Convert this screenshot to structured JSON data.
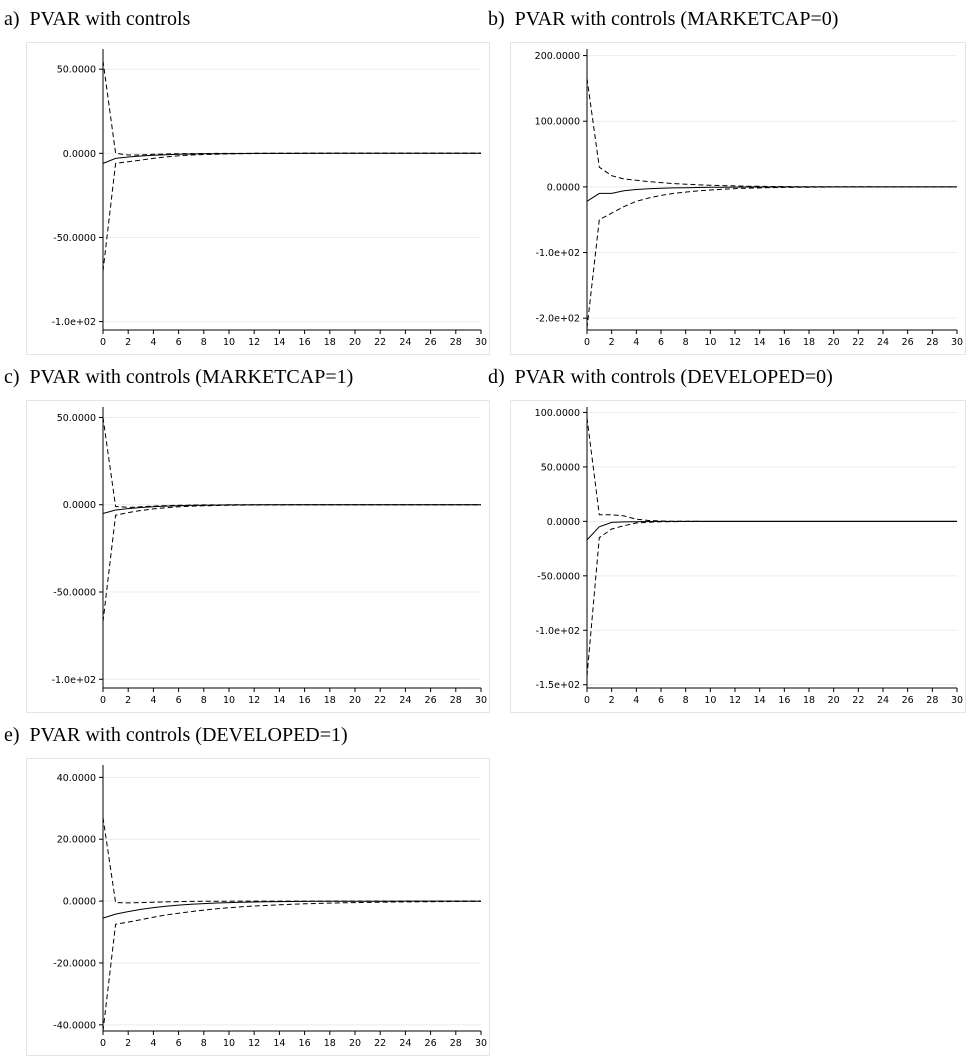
{
  "chart_data": [
    {
      "id": "a",
      "type": "line",
      "letter": "a)",
      "title": "PVAR with controls",
      "x": [
        0,
        1,
        2,
        3,
        4,
        5,
        6,
        7,
        8,
        9,
        10,
        11,
        12,
        13,
        14,
        15,
        16,
        17,
        18,
        19,
        20,
        21,
        22,
        23,
        24,
        25,
        26,
        27,
        28,
        29,
        30
      ],
      "xticks": [
        "0",
        "2",
        "4",
        "6",
        "8",
        "10",
        "12",
        "14",
        "16",
        "18",
        "20",
        "22",
        "24",
        "26",
        "28",
        "30"
      ],
      "ylim": [
        -105,
        62
      ],
      "yticks": [
        {
          "value": 50,
          "label": "50.0000"
        },
        {
          "value": 0,
          "label": "0.0000"
        },
        {
          "value": -50,
          "label": "-50.0000"
        },
        {
          "value": -100,
          "label": "-1.0e+02"
        }
      ],
      "grid": true,
      "series": [
        {
          "style": "dashed",
          "values": [
            55,
            0,
            -1,
            -1,
            -0.6,
            -0.4,
            -0.25,
            -0.15,
            -0.1,
            -0.05,
            -0.03,
            -0.02,
            -0.01,
            0,
            0,
            0,
            0,
            0,
            0,
            0,
            0,
            0,
            0,
            0,
            0,
            0,
            0,
            0,
            0,
            0,
            0
          ]
        },
        {
          "style": "solid",
          "values": [
            -6,
            -3,
            -2.2,
            -1.6,
            -1.1,
            -0.8,
            -0.55,
            -0.4,
            -0.28,
            -0.2,
            -0.14,
            -0.1,
            -0.07,
            -0.05,
            -0.03,
            -0.02,
            -0.01,
            0,
            0,
            0,
            0,
            0,
            0,
            0,
            0,
            0,
            0,
            0,
            0,
            0,
            0
          ]
        },
        {
          "style": "dashed",
          "values": [
            -70,
            -6,
            -5,
            -4,
            -3,
            -2.1,
            -1.5,
            -1,
            -0.7,
            -0.5,
            -0.35,
            -0.25,
            -0.15,
            -0.1,
            -0.07,
            -0.05,
            -0.03,
            -0.02,
            -0.01,
            0,
            0,
            0,
            0,
            0,
            0,
            0,
            0,
            0,
            0,
            0,
            0
          ]
        }
      ]
    },
    {
      "id": "b",
      "type": "line",
      "letter": "b)",
      "title": "PVAR with controls (MARKETCAP=0)",
      "x": [
        0,
        1,
        2,
        3,
        4,
        5,
        6,
        7,
        8,
        9,
        10,
        11,
        12,
        13,
        14,
        15,
        16,
        17,
        18,
        19,
        20,
        21,
        22,
        23,
        24,
        25,
        26,
        27,
        28,
        29,
        30
      ],
      "xticks": [
        "0",
        "2",
        "4",
        "6",
        "8",
        "10",
        "12",
        "14",
        "16",
        "18",
        "20",
        "22",
        "24",
        "26",
        "28",
        "30"
      ],
      "ylim": [
        -218,
        210
      ],
      "yticks": [
        {
          "value": 200,
          "label": "200.0000"
        },
        {
          "value": 100,
          "label": "100.0000"
        },
        {
          "value": 0,
          "label": "0.0000"
        },
        {
          "value": -100,
          "label": "-1.0e+02"
        },
        {
          "value": -200,
          "label": "-2.0e+02"
        }
      ],
      "grid": true,
      "series": [
        {
          "style": "dashed",
          "values": [
            165,
            30,
            17,
            12,
            10,
            8,
            6.5,
            5,
            4,
            3.2,
            2.5,
            2,
            1.5,
            1.1,
            0.8,
            0.6,
            0.45,
            0.3,
            0.2,
            0.15,
            0.1,
            0.08,
            0.05,
            0.04,
            0.03,
            0.02,
            0.01,
            0,
            0,
            0,
            0
          ]
        },
        {
          "style": "solid",
          "values": [
            -22,
            -10,
            -10,
            -6,
            -4,
            -3,
            -2.2,
            -1.6,
            -1.2,
            -0.9,
            -0.65,
            -0.48,
            -0.35,
            -0.25,
            -0.18,
            -0.13,
            -0.1,
            -0.07,
            -0.05,
            -0.03,
            -0.02,
            -0.01,
            0,
            0,
            0,
            0,
            0,
            0,
            0,
            0,
            0
          ]
        },
        {
          "style": "dashed",
          "values": [
            -215,
            -50,
            -40,
            -30,
            -22,
            -17,
            -13,
            -10,
            -8,
            -6.2,
            -4.8,
            -3.6,
            -2.7,
            -2,
            -1.5,
            -1.1,
            -0.8,
            -0.6,
            -0.45,
            -0.33,
            -0.25,
            -0.18,
            -0.13,
            -0.1,
            -0.07,
            -0.05,
            -0.03,
            -0.02,
            -0.01,
            0,
            0
          ]
        }
      ]
    },
    {
      "id": "c",
      "type": "line",
      "letter": "c)",
      "title": "PVAR with controls (MARKETCAP=1)",
      "x": [
        0,
        1,
        2,
        3,
        4,
        5,
        6,
        7,
        8,
        9,
        10,
        11,
        12,
        13,
        14,
        15,
        16,
        17,
        18,
        19,
        20,
        21,
        22,
        23,
        24,
        25,
        26,
        27,
        28,
        29,
        30
      ],
      "xticks": [
        "0",
        "2",
        "4",
        "6",
        "8",
        "10",
        "12",
        "14",
        "16",
        "18",
        "20",
        "22",
        "24",
        "26",
        "28",
        "30"
      ],
      "ylim": [
        -105,
        56
      ],
      "yticks": [
        {
          "value": 50,
          "label": "50.0000"
        },
        {
          "value": 0,
          "label": "0.0000"
        },
        {
          "value": -50,
          "label": "-50.0000"
        },
        {
          "value": -100,
          "label": "-1.0e+02"
        }
      ],
      "grid": true,
      "series": [
        {
          "style": "dashed",
          "values": [
            50,
            -1,
            -1.5,
            -1.2,
            -0.8,
            -0.5,
            -0.3,
            -0.2,
            -0.12,
            -0.08,
            -0.05,
            -0.03,
            -0.02,
            -0.01,
            0,
            0,
            0,
            0,
            0,
            0,
            0,
            0,
            0,
            0,
            0,
            0,
            0,
            0,
            0,
            0,
            0
          ]
        },
        {
          "style": "solid",
          "values": [
            -5,
            -3,
            -2.2,
            -1.6,
            -1.1,
            -0.8,
            -0.55,
            -0.38,
            -0.26,
            -0.18,
            -0.12,
            -0.08,
            -0.05,
            -0.03,
            -0.02,
            -0.01,
            0,
            0,
            0,
            0,
            0,
            0,
            0,
            0,
            0,
            0,
            0,
            0,
            0,
            0,
            0
          ]
        },
        {
          "style": "dashed",
          "values": [
            -67,
            -6,
            -4.5,
            -3.3,
            -2.4,
            -1.7,
            -1.2,
            -0.85,
            -0.6,
            -0.42,
            -0.3,
            -0.2,
            -0.14,
            -0.1,
            -0.07,
            -0.05,
            -0.03,
            -0.02,
            -0.01,
            0,
            0,
            0,
            0,
            0,
            0,
            0,
            0,
            0,
            0,
            0,
            0
          ]
        }
      ]
    },
    {
      "id": "d",
      "type": "line",
      "letter": "d)",
      "title": "PVAR with controls (DEVELOPED=0)",
      "x": [
        0,
        1,
        2,
        3,
        4,
        5,
        6,
        7,
        8,
        9,
        10,
        11,
        12,
        13,
        14,
        15,
        16,
        17,
        18,
        19,
        20,
        21,
        22,
        23,
        24,
        25,
        26,
        27,
        28,
        29,
        30
      ],
      "xticks": [
        "0",
        "2",
        "4",
        "6",
        "8",
        "10",
        "12",
        "14",
        "16",
        "18",
        "20",
        "22",
        "24",
        "26",
        "28",
        "30"
      ],
      "ylim": [
        -153,
        105
      ],
      "yticks": [
        {
          "value": 100,
          "label": "100.0000"
        },
        {
          "value": 50,
          "label": "50.0000"
        },
        {
          "value": 0,
          "label": "0.0000"
        },
        {
          "value": -50,
          "label": "-50.0000"
        },
        {
          "value": -100,
          "label": "-1.0e+02"
        },
        {
          "value": -150,
          "label": "-1.5e+02"
        }
      ],
      "grid": true,
      "series": [
        {
          "style": "dashed",
          "values": [
            95,
            6,
            6,
            5,
            2,
            0.8,
            0.3,
            0.1,
            0.05,
            0.02,
            0,
            0,
            0,
            0,
            0,
            0,
            0,
            0,
            0,
            0,
            0,
            0,
            0,
            0,
            0,
            0,
            0,
            0,
            0,
            0,
            0
          ]
        },
        {
          "style": "solid",
          "values": [
            -17,
            -5,
            -1,
            -0.5,
            -0.3,
            -0.15,
            -0.08,
            -0.04,
            -0.02,
            -0.01,
            0,
            0,
            0,
            0,
            0,
            0,
            0,
            0,
            0,
            0,
            0,
            0,
            0,
            0,
            0,
            0,
            0,
            0,
            0,
            0,
            0
          ]
        },
        {
          "style": "dashed",
          "values": [
            -142,
            -15,
            -7,
            -4,
            -1.5,
            -0.8,
            -0.4,
            -0.2,
            -0.1,
            -0.05,
            -0.02,
            0,
            0,
            0,
            0,
            0,
            0,
            0,
            0,
            0,
            0,
            0,
            0,
            0,
            0,
            0,
            0,
            0,
            0,
            0,
            0
          ]
        }
      ]
    },
    {
      "id": "e",
      "type": "line",
      "letter": "e)",
      "title": "PVAR with controls (DEVELOPED=1)",
      "x": [
        0,
        1,
        2,
        3,
        4,
        5,
        6,
        7,
        8,
        9,
        10,
        11,
        12,
        13,
        14,
        15,
        16,
        17,
        18,
        19,
        20,
        21,
        22,
        23,
        24,
        25,
        26,
        27,
        28,
        29,
        30
      ],
      "xticks": [
        "0",
        "2",
        "4",
        "6",
        "8",
        "10",
        "12",
        "14",
        "16",
        "18",
        "20",
        "22",
        "24",
        "26",
        "28",
        "30"
      ],
      "ylim": [
        -42,
        44
      ],
      "yticks": [
        {
          "value": 40,
          "label": "40.0000"
        },
        {
          "value": 20,
          "label": "20.0000"
        },
        {
          "value": 0,
          "label": "0.0000"
        },
        {
          "value": -20,
          "label": "-20.0000"
        },
        {
          "value": -40,
          "label": "-40.0000"
        }
      ],
      "grid": true,
      "series": [
        {
          "style": "dashed",
          "values": [
            27,
            -0.5,
            -0.6,
            -0.5,
            -0.35,
            -0.25,
            -0.15,
            -0.1,
            -0.06,
            -0.04,
            -0.02,
            -0.01,
            0,
            0,
            0,
            0,
            0,
            0,
            0,
            0,
            0,
            0,
            0,
            0,
            0,
            0,
            0,
            0,
            0,
            0,
            0
          ]
        },
        {
          "style": "solid",
          "values": [
            -5.5,
            -4.2,
            -3.4,
            -2.7,
            -2.1,
            -1.65,
            -1.3,
            -1.02,
            -0.8,
            -0.62,
            -0.48,
            -0.37,
            -0.29,
            -0.22,
            -0.17,
            -0.13,
            -0.1,
            -0.08,
            -0.06,
            -0.05,
            -0.04,
            -0.03,
            -0.02,
            -0.02,
            -0.01,
            -0.01,
            0,
            0,
            0,
            0,
            0
          ]
        },
        {
          "style": "dashed",
          "values": [
            -42,
            -7.5,
            -6.8,
            -6,
            -5.2,
            -4.5,
            -3.9,
            -3.4,
            -2.9,
            -2.5,
            -2.15,
            -1.85,
            -1.6,
            -1.38,
            -1.19,
            -1.02,
            -0.88,
            -0.76,
            -0.65,
            -0.56,
            -0.48,
            -0.41,
            -0.35,
            -0.3,
            -0.26,
            -0.22,
            -0.19,
            -0.16,
            -0.13,
            -0.11,
            -0.09
          ]
        }
      ]
    }
  ]
}
